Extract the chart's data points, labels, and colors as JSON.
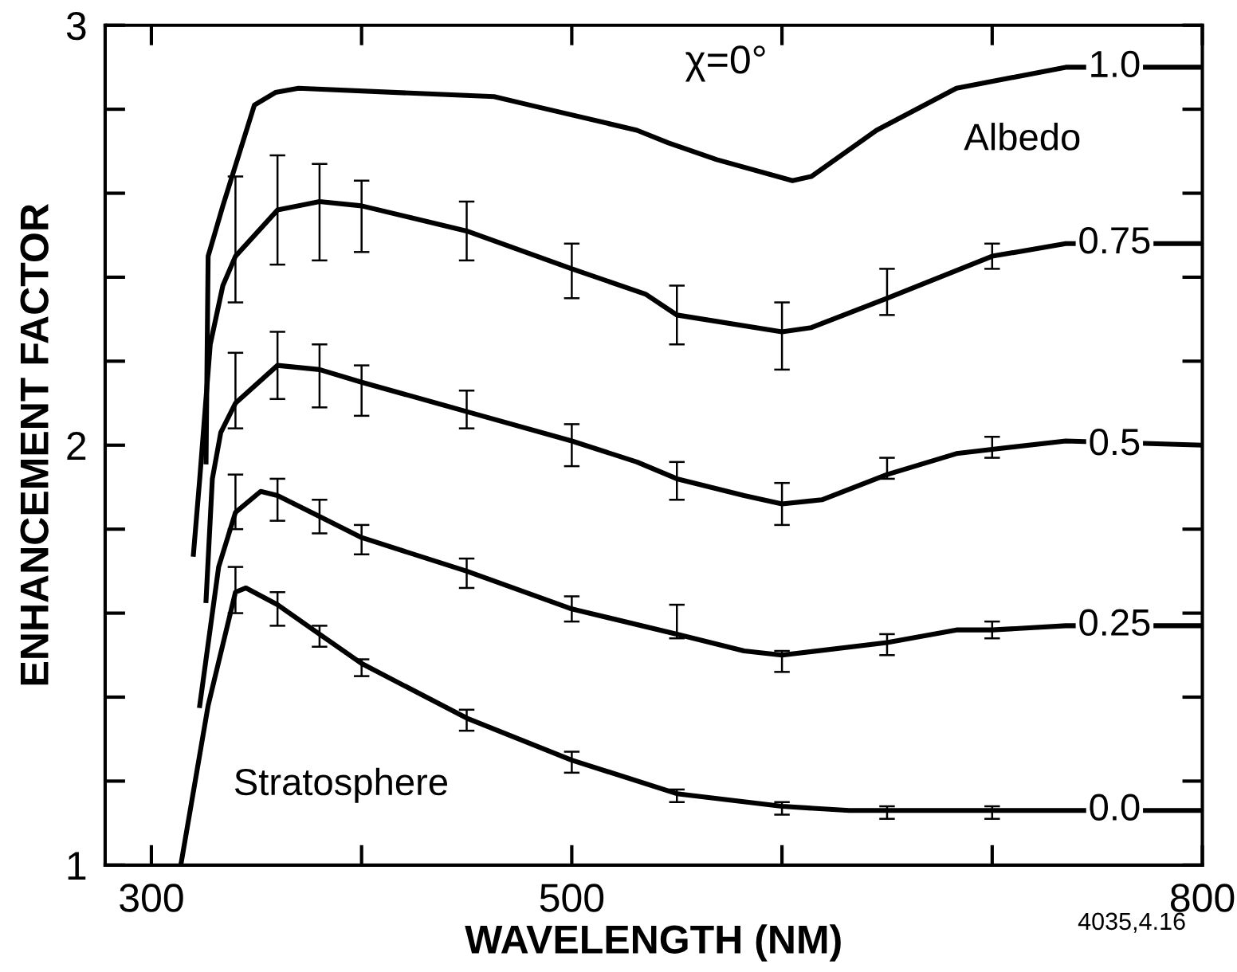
{
  "chart_data": {
    "type": "line",
    "xlabel": "WAVELENGTH (NM)",
    "ylabel": "ENHANCEMENT FACTOR",
    "annotations": [
      "χ=0°",
      "Albedo",
      "Stratosphere",
      "4035,4.16"
    ],
    "xlim": [
      278,
      800
    ],
    "ylim": [
      1,
      3
    ],
    "xticks": [
      300,
      {
        "value": 400,
        "label": null
      },
      500,
      {
        "value": 600,
        "label": null
      },
      {
        "value": 700,
        "label": null
      },
      800
    ],
    "yticks": [
      1,
      {
        "value": 1.2,
        "label": null
      },
      {
        "value": 1.4,
        "label": null
      },
      {
        "value": 1.6,
        "label": null
      },
      {
        "value": 1.8,
        "label": null
      },
      2,
      {
        "value": 2.2,
        "label": null
      },
      {
        "value": 2.4,
        "label": null
      },
      {
        "value": 2.6,
        "label": null
      },
      {
        "value": 2.8,
        "label": null
      },
      3
    ],
    "legend": "right",
    "marker": "none",
    "line_style": "solid",
    "series": [
      {
        "name": "1.0",
        "color": "#000000",
        "x": [
          326,
          327,
          334,
          349,
          359,
          370,
          463,
          480,
          531,
          546,
          569,
          605,
          614,
          645,
          683,
          735,
          800
        ],
        "values": [
          1.96,
          2.45,
          2.57,
          2.81,
          2.84,
          2.85,
          2.83,
          2.81,
          2.75,
          2.72,
          2.68,
          2.63,
          2.64,
          2.75,
          2.85,
          2.9,
          2.9
        ]
      },
      {
        "name": "0.75",
        "color": "#000000",
        "x": [
          320,
          323,
          328,
          334,
          340,
          360,
          380,
          400,
          450,
          500,
          535,
          550,
          600,
          614,
          650,
          700,
          735,
          800
        ],
        "values": [
          1.74,
          1.92,
          2.24,
          2.38,
          2.45,
          2.56,
          2.58,
          2.57,
          2.51,
          2.42,
          2.36,
          2.31,
          2.27,
          2.28,
          2.35,
          2.45,
          2.48,
          2.48
        ],
        "errors": [
          null,
          null,
          null,
          null,
          [
            2.34,
            2.64
          ],
          [
            2.43,
            2.69
          ],
          [
            2.44,
            2.67
          ],
          [
            2.46,
            2.63
          ],
          [
            2.44,
            2.58
          ],
          [
            2.35,
            2.48
          ],
          null,
          [
            2.24,
            2.38
          ],
          [
            2.18,
            2.34
          ],
          null,
          [
            2.31,
            2.42
          ],
          [
            2.42,
            2.48
          ],
          null,
          null
        ]
      },
      {
        "name": "0.5",
        "color": "#000000",
        "x": [
          326,
          329,
          333,
          340,
          360,
          380,
          400,
          450,
          500,
          531,
          550,
          582,
          600,
          619,
          650,
          683,
          700,
          735,
          800
        ],
        "values": [
          1.63,
          1.92,
          2.03,
          2.1,
          2.19,
          2.18,
          2.15,
          2.08,
          2.01,
          1.96,
          1.92,
          1.88,
          1.86,
          1.87,
          1.93,
          1.98,
          1.99,
          2.01,
          2.0
        ],
        "errors": [
          null,
          null,
          null,
          [
            2.04,
            2.22
          ],
          [
            2.11,
            2.27
          ],
          [
            2.09,
            2.24
          ],
          [
            2.07,
            2.19
          ],
          [
            2.04,
            2.13
          ],
          [
            1.95,
            2.05
          ],
          null,
          [
            1.87,
            1.96
          ],
          null,
          [
            1.81,
            1.91
          ],
          null,
          [
            1.92,
            1.97
          ],
          null,
          [
            1.97,
            2.02
          ],
          null,
          null
        ]
      },
      {
        "name": "0.25",
        "color": "#000000",
        "x": [
          323,
          332,
          340,
          352,
          360,
          380,
          400,
          450,
          500,
          550,
          582,
          600,
          650,
          683,
          700,
          735,
          800
        ],
        "values": [
          1.38,
          1.71,
          1.84,
          1.89,
          1.88,
          1.83,
          1.78,
          1.7,
          1.61,
          1.55,
          1.51,
          1.5,
          1.53,
          1.56,
          1.56,
          1.57,
          1.57
        ],
        "errors": [
          null,
          null,
          [
            1.8,
            1.93
          ],
          null,
          [
            1.82,
            1.92
          ],
          [
            1.79,
            1.87
          ],
          [
            1.74,
            1.81
          ],
          [
            1.66,
            1.73
          ],
          [
            1.58,
            1.64
          ],
          [
            1.54,
            1.62
          ],
          null,
          [
            1.46,
            1.51
          ],
          [
            1.5,
            1.55
          ],
          null,
          [
            1.54,
            1.58
          ],
          null,
          null
        ]
      },
      {
        "name": "0.0",
        "color": "#000000",
        "x": [
          314,
          327,
          340,
          345,
          360,
          380,
          400,
          450,
          500,
          550,
          600,
          632,
          650,
          700,
          735,
          800
        ],
        "values": [
          1.0,
          1.38,
          1.65,
          1.66,
          1.62,
          1.55,
          1.48,
          1.35,
          1.25,
          1.17,
          1.14,
          1.13,
          1.13,
          1.13,
          1.13,
          1.13
        ],
        "errors": [
          null,
          null,
          [
            1.6,
            1.71
          ],
          null,
          [
            1.57,
            1.65
          ],
          [
            1.52,
            1.57
          ],
          [
            1.45,
            1.49
          ],
          [
            1.32,
            1.37
          ],
          [
            1.22,
            1.27
          ],
          [
            1.15,
            1.18
          ],
          [
            1.12,
            1.15
          ],
          null,
          [
            1.11,
            1.14
          ],
          [
            1.11,
            1.14
          ],
          null,
          null
        ]
      }
    ]
  }
}
